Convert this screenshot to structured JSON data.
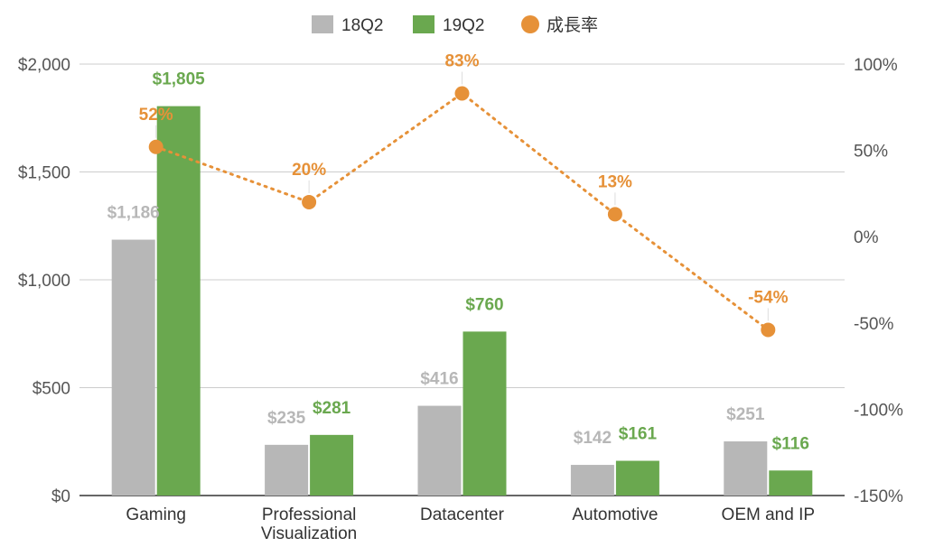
{
  "chart_data": {
    "type": "bar",
    "categories": [
      "Gaming",
      "Professional Visualization",
      "Datacenter",
      "Automotive",
      "OEM and IP"
    ],
    "category_lines": [
      [
        "Gaming"
      ],
      [
        "Professional",
        "Visualization"
      ],
      [
        "Datacenter"
      ],
      [
        "Automotive"
      ],
      [
        "OEM and IP"
      ]
    ],
    "series": [
      {
        "name": "18Q2",
        "values": [
          1186,
          235,
          416,
          142,
          251
        ],
        "labels": [
          "$1,186",
          "$235",
          "$416",
          "$142",
          "$251"
        ],
        "color": "#b7b7b7"
      },
      {
        "name": "19Q2",
        "values": [
          1805,
          281,
          760,
          161,
          116
        ],
        "labels": [
          "$1,805",
          "$281",
          "$760",
          "$161",
          "$116"
        ],
        "color": "#6aa84f"
      }
    ],
    "line_series": {
      "name": "成長率",
      "values": [
        52,
        20,
        83,
        13,
        -54
      ],
      "labels": [
        "52%",
        "20%",
        "83%",
        "13%",
        "-54%"
      ],
      "color": "#e69138",
      "style": "dotted",
      "axis": "right"
    },
    "y_left": {
      "min": 0,
      "max": 2000,
      "ticks": [
        0,
        500,
        1000,
        1500,
        2000
      ],
      "tick_labels": [
        "$0",
        "$500",
        "$1,000",
        "$1,500",
        "$2,000"
      ]
    },
    "y_right": {
      "min": -150,
      "max": 100,
      "ticks": [
        -150,
        -100,
        -50,
        0,
        50,
        100
      ],
      "tick_labels": [
        "-150%",
        "-100%",
        "-50%",
        "0%",
        "50%",
        "100%"
      ]
    },
    "legend": {
      "position": "top-center",
      "items": [
        "18Q2",
        "19Q2",
        "成長率"
      ]
    },
    "grid": true
  }
}
